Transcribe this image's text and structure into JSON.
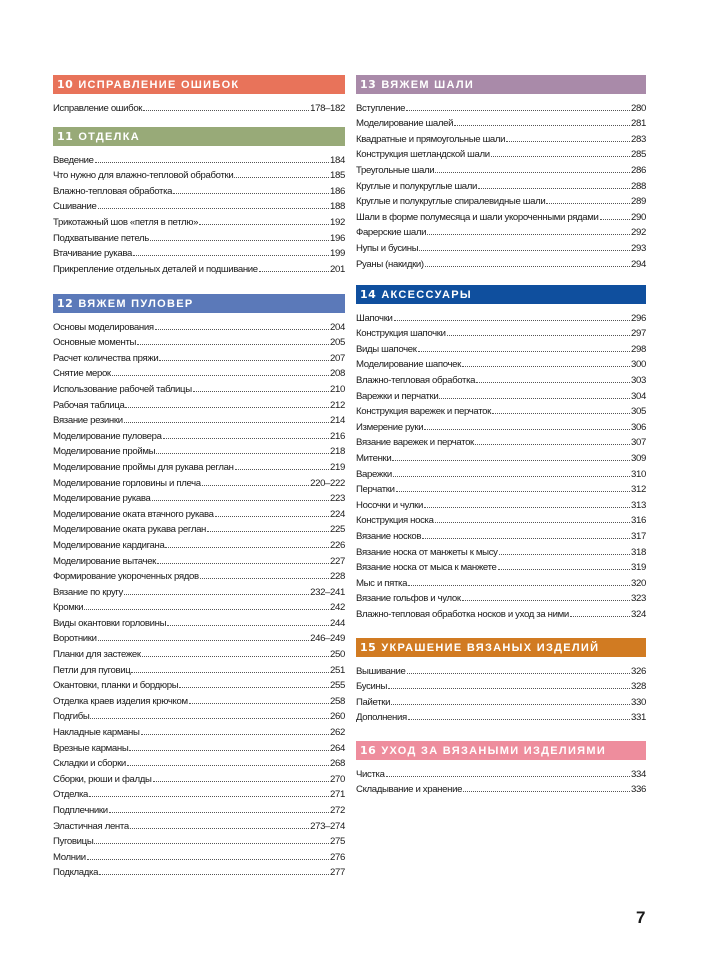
{
  "sections": [
    {
      "num": "10",
      "title": "ИСПРАВЛЕНИЕ ОШИБОК",
      "color": "#e8735a",
      "entries": [
        {
          "title": "Исправление ошибок",
          "page": "178–182"
        }
      ]
    },
    {
      "num": "11",
      "title": "ОТДЕЛКА",
      "color": "#98aa78",
      "entries": [
        {
          "title": "Введение",
          "page": "184"
        },
        {
          "title": "Что нужно для влажно-тепловой обработки",
          "page": "185"
        },
        {
          "title": "Влажно-тепловая обработка",
          "page": "186"
        },
        {
          "title": "Сшивание",
          "page": "188"
        },
        {
          "title": "Трикотажный шов «петля в петлю»",
          "page": "192"
        },
        {
          "title": "Подхватывание петель",
          "page": "196"
        },
        {
          "title": "Втачивание рукава",
          "page": "199"
        },
        {
          "title": "Прикрепление отдельных деталей и подшивание",
          "page": "201"
        }
      ]
    },
    {
      "num": "12",
      "title": "ВЯЖЕМ ПУЛОВЕР",
      "color": "#5b79b9",
      "entries": [
        {
          "title": "Основы моделирования",
          "page": "204"
        },
        {
          "title": "Основные моменты",
          "page": "205"
        },
        {
          "title": "Расчет количества пряжи",
          "page": "207"
        },
        {
          "title": "Снятие мерок",
          "page": "208"
        },
        {
          "title": "Использование рабочей таблицы",
          "page": "210"
        },
        {
          "title": "Рабочая таблица",
          "page": "212"
        },
        {
          "title": "Вязание резинки",
          "page": "214"
        },
        {
          "title": "Моделирование пуловера",
          "page": "216"
        },
        {
          "title": "Моделирование проймы",
          "page": "218"
        },
        {
          "title": "Моделирование проймы для рукава реглан",
          "page": "219"
        },
        {
          "title": "Моделирование горловины и плеча",
          "page": "220–222"
        },
        {
          "title": "Моделирование рукава",
          "page": "223"
        },
        {
          "title": "Моделирование оката втачного рукава",
          "page": "224"
        },
        {
          "title": "Моделирование оката рукава реглан",
          "page": "225"
        },
        {
          "title": "Моделирование кардигана",
          "page": "226"
        },
        {
          "title": "Моделирование вытачек",
          "page": "227"
        },
        {
          "title": "Формирование укороченных рядов",
          "page": "228"
        },
        {
          "title": "Вязание по кругу",
          "page": "232–241"
        },
        {
          "title": "Кромки",
          "page": "242"
        },
        {
          "title": "Виды окантовки горловины",
          "page": "244"
        },
        {
          "title": "Воротники",
          "page": "246–249"
        },
        {
          "title": "Планки для застежек",
          "page": "250"
        },
        {
          "title": "Петли для пуговиц",
          "page": "251"
        },
        {
          "title": "Окантовки, планки и бордюры",
          "page": "255"
        },
        {
          "title": "Отделка краев изделия крючком",
          "page": "258"
        },
        {
          "title": "Подгибы",
          "page": "260"
        },
        {
          "title": "Накладные карманы",
          "page": "262"
        },
        {
          "title": "Врезные карманы",
          "page": "264"
        },
        {
          "title": "Складки и сборки",
          "page": "268"
        },
        {
          "title": "Сборки, рюши и фалды",
          "page": "270"
        },
        {
          "title": "Отделка",
          "page": "271"
        },
        {
          "title": "Подплечники",
          "page": "272"
        },
        {
          "title": "Эластичная лента",
          "page": "273–274"
        },
        {
          "title": "Пуговицы",
          "page": "275"
        },
        {
          "title": "Молнии",
          "page": "276"
        },
        {
          "title": "Подкладка",
          "page": "277"
        }
      ]
    },
    {
      "num": "13",
      "title": "ВЯЖЕМ ШАЛИ",
      "color": "#a98aa9",
      "entries": [
        {
          "title": "Вступление",
          "page": "280"
        },
        {
          "title": "Моделирование шалей",
          "page": "281"
        },
        {
          "title": "Квадратные и прямоугольные шали",
          "page": "283"
        },
        {
          "title": "Конструкция шетландской шали",
          "page": "285"
        },
        {
          "title": "Треугольные шали",
          "page": "286"
        },
        {
          "title": "Круглые и полукруглые шали",
          "page": "288"
        },
        {
          "title": "Круглые и полукруглые спиралевидные шали",
          "page": "289"
        },
        {
          "title": "Шали в форме полумесяца и шали укороченными рядами",
          "page": "290"
        },
        {
          "title": "Фарерские шали",
          "page": "292"
        },
        {
          "title": "Нупы и бусины",
          "page": "293"
        },
        {
          "title": "Руаны (накидки)",
          "page": "294"
        }
      ]
    },
    {
      "num": "14",
      "title": "АКСЕССУАРЫ",
      "color": "#0f4f9e",
      "entries": [
        {
          "title": "Шапочки",
          "page": "296"
        },
        {
          "title": "Конструкция шапочки",
          "page": "297"
        },
        {
          "title": "Виды шапочек",
          "page": "298"
        },
        {
          "title": "Моделирование шапочек",
          "page": "300"
        },
        {
          "title": "Влажно-тепловая обработка",
          "page": "303"
        },
        {
          "title": "Варежки и перчатки",
          "page": "304"
        },
        {
          "title": "Конструкция варежек и перчаток",
          "page": "305"
        },
        {
          "title": "Измерение руки",
          "page": "306"
        },
        {
          "title": "Вязание варежек и перчаток",
          "page": "307"
        },
        {
          "title": "Митенки",
          "page": "309"
        },
        {
          "title": "Варежки",
          "page": "310"
        },
        {
          "title": "Перчатки",
          "page": "312"
        },
        {
          "title": "Носочки и чулки",
          "page": "313"
        },
        {
          "title": "Конструкция носка",
          "page": "316"
        },
        {
          "title": "Вязание носков",
          "page": "317"
        },
        {
          "title": "Вязание носка от манжеты к мысу",
          "page": "318"
        },
        {
          "title": "Вязание носка от мыса к манжете",
          "page": "319"
        },
        {
          "title": "Мыс и пятка",
          "page": "320"
        },
        {
          "title": "Вязание гольфов и чулок",
          "page": "323"
        },
        {
          "title": "Влажно-тепловая обработка носков и уход за ними",
          "page": "324"
        }
      ]
    },
    {
      "num": "15",
      "title": "УКРАШЕНИЕ ВЯЗАНЫХ ИЗДЕЛИЙ",
      "color": "#d17b22",
      "entries": [
        {
          "title": "Вышивание",
          "page": "326"
        },
        {
          "title": "Бусины",
          "page": "328"
        },
        {
          "title": "Пайетки",
          "page": "330"
        },
        {
          "title": "Дополнения",
          "page": "331"
        }
      ]
    },
    {
      "num": "16",
      "title": "УХОД ЗА ВЯЗАНЫМИ ИЗДЕЛИЯМИ",
      "color": "#ee8d9d",
      "entries": [
        {
          "title": "Чистка",
          "page": "334"
        },
        {
          "title": "Складывание и хранение",
          "page": "336"
        }
      ]
    }
  ],
  "page_number": "7"
}
